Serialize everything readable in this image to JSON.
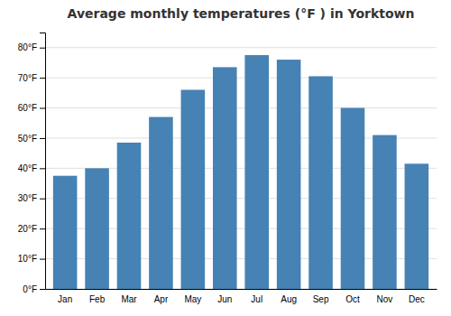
{
  "chart_data": {
    "type": "bar",
    "title": "Average monthly temperatures (°F ) in Yorktown",
    "categories": [
      "Jan",
      "Feb",
      "Mar",
      "Apr",
      "May",
      "Jun",
      "Jul",
      "Aug",
      "Sep",
      "Oct",
      "Nov",
      "Dec"
    ],
    "values": [
      37.5,
      40,
      48.5,
      57,
      66,
      73.5,
      77.5,
      76,
      70.5,
      60,
      51,
      41.5
    ],
    "ylim": [
      0,
      85
    ],
    "yticks": [
      {
        "value": 0,
        "label": "0°F"
      },
      {
        "value": 10,
        "label": "10°F"
      },
      {
        "value": 20,
        "label": "20°F"
      },
      {
        "value": 30,
        "label": "30°F"
      },
      {
        "value": 40,
        "label": "40°F"
      },
      {
        "value": 50,
        "label": "50°F"
      },
      {
        "value": 60,
        "label": "60°F"
      },
      {
        "value": 70,
        "label": "70°F"
      },
      {
        "value": 80,
        "label": "80°F"
      }
    ],
    "grid": true
  }
}
